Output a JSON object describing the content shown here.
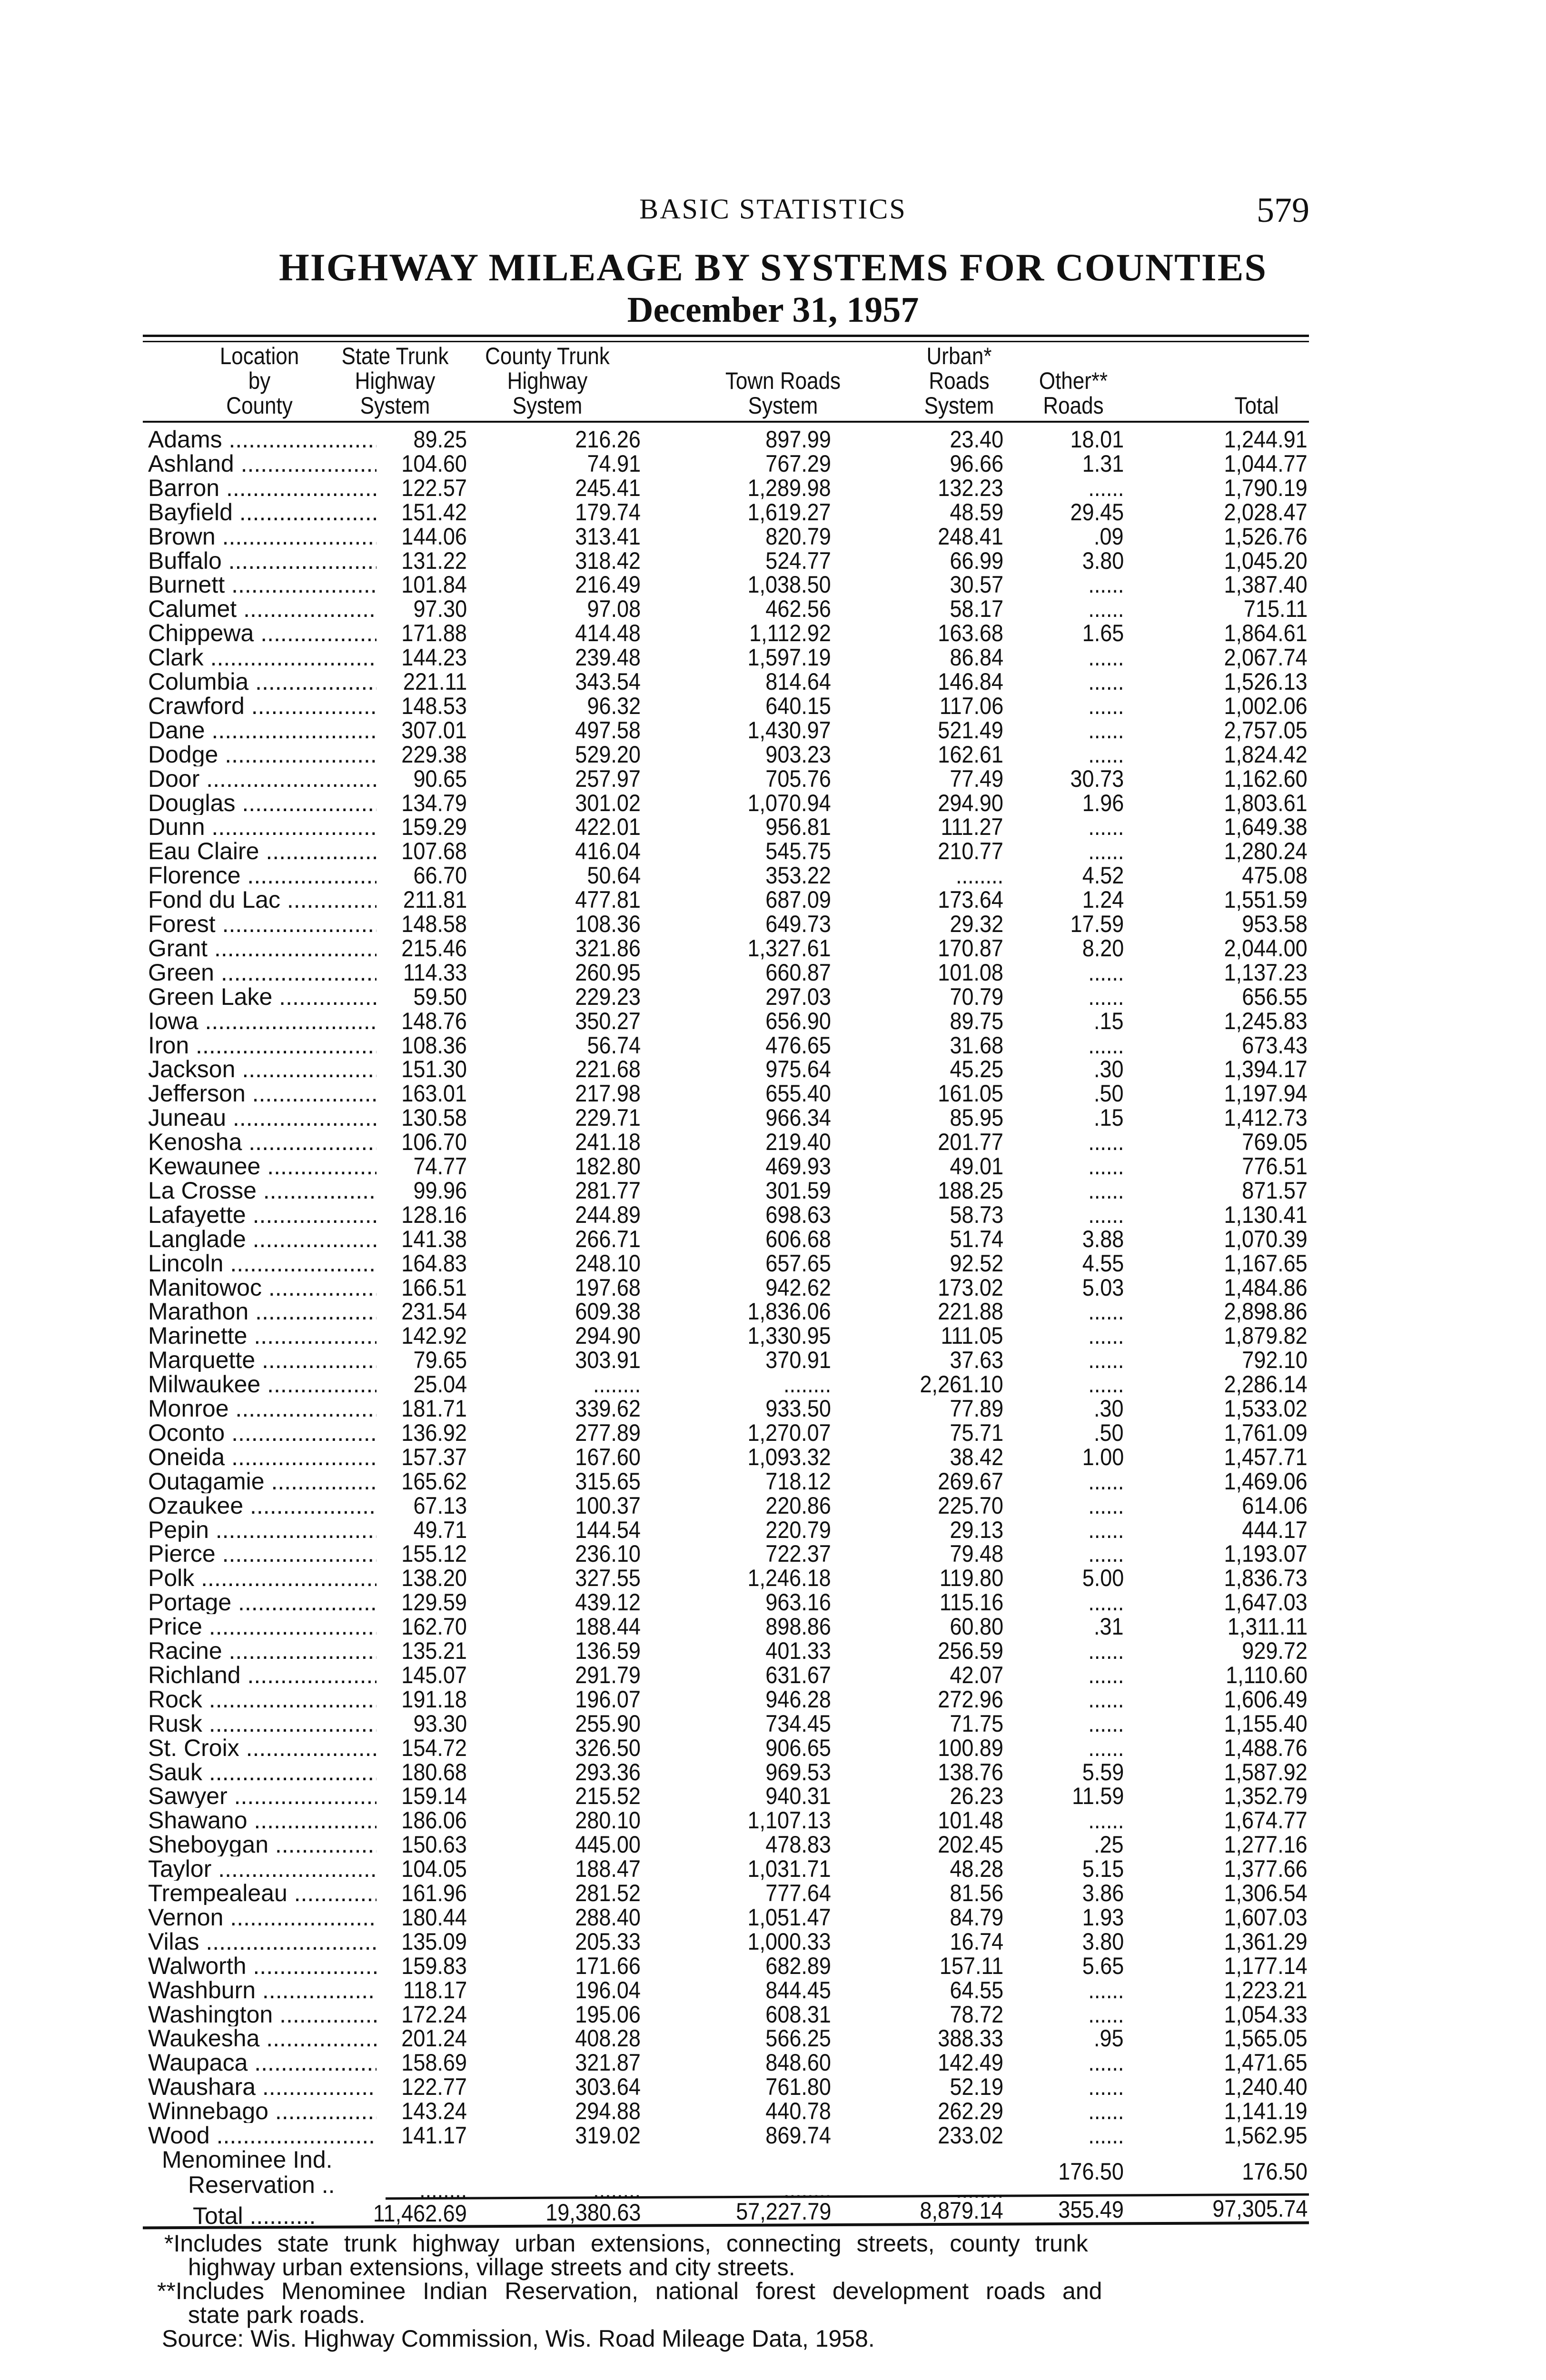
{
  "running_head": "BASIC STATISTICS",
  "page_number": "579",
  "title": "HIGHWAY MILEAGE BY SYSTEMS FOR COUNTIES",
  "date": "December 31, 1957",
  "columns": [
    [
      "Location",
      "by",
      "County"
    ],
    [
      "State Trunk",
      "Highway",
      "System"
    ],
    [
      "County Trunk",
      "Highway",
      "System"
    ],
    [
      "",
      "Town Roads",
      "System"
    ],
    [
      "Urban*",
      "Roads",
      "System"
    ],
    [
      "",
      "Other**",
      "Roads"
    ],
    [
      "",
      "",
      "Total"
    ]
  ],
  "rows": [
    [
      "Adams",
      "89.25",
      "216.26",
      "897.99",
      "23.40",
      "18.01",
      "1,244.91"
    ],
    [
      "Ashland",
      "104.60",
      "74.91",
      "767.29",
      "96.66",
      "1.31",
      "1,044.77"
    ],
    [
      "Barron",
      "122.57",
      "245.41",
      "1,289.98",
      "132.23",
      "......",
      "1,790.19"
    ],
    [
      "Bayfield",
      "151.42",
      "179.74",
      "1,619.27",
      "48.59",
      "29.45",
      "2,028.47"
    ],
    [
      "Brown",
      "144.06",
      "313.41",
      "820.79",
      "248.41",
      ".09",
      "1,526.76"
    ],
    [
      "Buffalo",
      "131.22",
      "318.42",
      "524.77",
      "66.99",
      "3.80",
      "1,045.20"
    ],
    [
      "Burnett",
      "101.84",
      "216.49",
      "1,038.50",
      "30.57",
      "......",
      "1,387.40"
    ],
    [
      "Calumet",
      "97.30",
      "97.08",
      "462.56",
      "58.17",
      "......",
      "715.11"
    ],
    [
      "Chippewa",
      "171.88",
      "414.48",
      "1,112.92",
      "163.68",
      "1.65",
      "1,864.61"
    ],
    [
      "Clark",
      "144.23",
      "239.48",
      "1,597.19",
      "86.84",
      "......",
      "2,067.74"
    ],
    [
      "Columbia",
      "221.11",
      "343.54",
      "814.64",
      "146.84",
      "......",
      "1,526.13"
    ],
    [
      "Crawford",
      "148.53",
      "96.32",
      "640.15",
      "117.06",
      "......",
      "1,002.06"
    ],
    [
      "Dane",
      "307.01",
      "497.58",
      "1,430.97",
      "521.49",
      "......",
      "2,757.05"
    ],
    [
      "Dodge",
      "229.38",
      "529.20",
      "903.23",
      "162.61",
      "......",
      "1,824.42"
    ],
    [
      "Door",
      "90.65",
      "257.97",
      "705.76",
      "77.49",
      "30.73",
      "1,162.60"
    ],
    [
      "Douglas",
      "134.79",
      "301.02",
      "1,070.94",
      "294.90",
      "1.96",
      "1,803.61"
    ],
    [
      "Dunn",
      "159.29",
      "422.01",
      "956.81",
      "111.27",
      "......",
      "1,649.38"
    ],
    [
      "Eau Claire",
      "107.68",
      "416.04",
      "545.75",
      "210.77",
      "......",
      "1,280.24"
    ],
    [
      "Florence",
      "66.70",
      "50.64",
      "353.22",
      "........",
      "4.52",
      "475.08"
    ],
    [
      "Fond du Lac",
      "211.81",
      "477.81",
      "687.09",
      "173.64",
      "1.24",
      "1,551.59"
    ],
    [
      "Forest",
      "148.58",
      "108.36",
      "649.73",
      "29.32",
      "17.59",
      "953.58"
    ],
    [
      "Grant",
      "215.46",
      "321.86",
      "1,327.61",
      "170.87",
      "8.20",
      "2,044.00"
    ],
    [
      "Green",
      "114.33",
      "260.95",
      "660.87",
      "101.08",
      "......",
      "1,137.23"
    ],
    [
      "Green Lake",
      "59.50",
      "229.23",
      "297.03",
      "70.79",
      "......",
      "656.55"
    ],
    [
      "Iowa",
      "148.76",
      "350.27",
      "656.90",
      "89.75",
      ".15",
      "1,245.83"
    ],
    [
      "Iron",
      "108.36",
      "56.74",
      "476.65",
      "31.68",
      "......",
      "673.43"
    ],
    [
      "Jackson",
      "151.30",
      "221.68",
      "975.64",
      "45.25",
      ".30",
      "1,394.17"
    ],
    [
      "Jefferson",
      "163.01",
      "217.98",
      "655.40",
      "161.05",
      ".50",
      "1,197.94"
    ],
    [
      "Juneau",
      "130.58",
      "229.71",
      "966.34",
      "85.95",
      ".15",
      "1,412.73"
    ],
    [
      "Kenosha",
      "106.70",
      "241.18",
      "219.40",
      "201.77",
      "......",
      "769.05"
    ],
    [
      "Kewaunee",
      "74.77",
      "182.80",
      "469.93",
      "49.01",
      "......",
      "776.51"
    ],
    [
      "La Crosse",
      "99.96",
      "281.77",
      "301.59",
      "188.25",
      "......",
      "871.57"
    ],
    [
      "Lafayette",
      "128.16",
      "244.89",
      "698.63",
      "58.73",
      "......",
      "1,130.41"
    ],
    [
      "Langlade",
      "141.38",
      "266.71",
      "606.68",
      "51.74",
      "3.88",
      "1,070.39"
    ],
    [
      "Lincoln",
      "164.83",
      "248.10",
      "657.65",
      "92.52",
      "4.55",
      "1,167.65"
    ],
    [
      "Manitowoc",
      "166.51",
      "197.68",
      "942.62",
      "173.02",
      "5.03",
      "1,484.86"
    ],
    [
      "Marathon",
      "231.54",
      "609.38",
      "1,836.06",
      "221.88",
      "......",
      "2,898.86"
    ],
    [
      "Marinette",
      "142.92",
      "294.90",
      "1,330.95",
      "111.05",
      "......",
      "1,879.82"
    ],
    [
      "Marquette",
      "79.65",
      "303.91",
      "370.91",
      "37.63",
      "......",
      "792.10"
    ],
    [
      "Milwaukee",
      "25.04",
      "........",
      "........",
      "2,261.10",
      "......",
      "2,286.14"
    ],
    [
      "Monroe",
      "181.71",
      "339.62",
      "933.50",
      "77.89",
      ".30",
      "1,533.02"
    ],
    [
      "Oconto",
      "136.92",
      "277.89",
      "1,270.07",
      "75.71",
      ".50",
      "1,761.09"
    ],
    [
      "Oneida",
      "157.37",
      "167.60",
      "1,093.32",
      "38.42",
      "1.00",
      "1,457.71"
    ],
    [
      "Outagamie",
      "165.62",
      "315.65",
      "718.12",
      "269.67",
      "......",
      "1,469.06"
    ],
    [
      "Ozaukee",
      "67.13",
      "100.37",
      "220.86",
      "225.70",
      "......",
      "614.06"
    ],
    [
      "Pepin",
      "49.71",
      "144.54",
      "220.79",
      "29.13",
      "......",
      "444.17"
    ],
    [
      "Pierce",
      "155.12",
      "236.10",
      "722.37",
      "79.48",
      "......",
      "1,193.07"
    ],
    [
      "Polk",
      "138.20",
      "327.55",
      "1,246.18",
      "119.80",
      "5.00",
      "1,836.73"
    ],
    [
      "Portage",
      "129.59",
      "439.12",
      "963.16",
      "115.16",
      "......",
      "1,647.03"
    ],
    [
      "Price",
      "162.70",
      "188.44",
      "898.86",
      "60.80",
      ".31",
      "1,311.11"
    ],
    [
      "Racine",
      "135.21",
      "136.59",
      "401.33",
      "256.59",
      "......",
      "929.72"
    ],
    [
      "Richland",
      "145.07",
      "291.79",
      "631.67",
      "42.07",
      "......",
      "1,110.60"
    ],
    [
      "Rock",
      "191.18",
      "196.07",
      "946.28",
      "272.96",
      "......",
      "1,606.49"
    ],
    [
      "Rusk",
      "93.30",
      "255.90",
      "734.45",
      "71.75",
      "......",
      "1,155.40"
    ],
    [
      "St. Croix",
      "154.72",
      "326.50",
      "906.65",
      "100.89",
      "......",
      "1,488.76"
    ],
    [
      "Sauk",
      "180.68",
      "293.36",
      "969.53",
      "138.76",
      "5.59",
      "1,587.92"
    ],
    [
      "Sawyer",
      "159.14",
      "215.52",
      "940.31",
      "26.23",
      "11.59",
      "1,352.79"
    ],
    [
      "Shawano",
      "186.06",
      "280.10",
      "1,107.13",
      "101.48",
      "......",
      "1,674.77"
    ],
    [
      "Sheboygan",
      "150.63",
      "445.00",
      "478.83",
      "202.45",
      ".25",
      "1,277.16"
    ],
    [
      "Taylor",
      "104.05",
      "188.47",
      "1,031.71",
      "48.28",
      "5.15",
      "1,377.66"
    ],
    [
      "Trempealeau",
      "161.96",
      "281.52",
      "777.64",
      "81.56",
      "3.86",
      "1,306.54"
    ],
    [
      "Vernon",
      "180.44",
      "288.40",
      "1,051.47",
      "84.79",
      "1.93",
      "1,607.03"
    ],
    [
      "Vilas",
      "135.09",
      "205.33",
      "1,000.33",
      "16.74",
      "3.80",
      "1,361.29"
    ],
    [
      "Walworth",
      "159.83",
      "171.66",
      "682.89",
      "157.11",
      "5.65",
      "1,177.14"
    ],
    [
      "Washburn",
      "118.17",
      "196.04",
      "844.45",
      "64.55",
      "......",
      "1,223.21"
    ],
    [
      "Washington",
      "172.24",
      "195.06",
      "608.31",
      "78.72",
      "......",
      "1,054.33"
    ],
    [
      "Waukesha",
      "201.24",
      "408.28",
      "566.25",
      "388.33",
      ".95",
      "1,565.05"
    ],
    [
      "Waupaca",
      "158.69",
      "321.87",
      "848.60",
      "142.49",
      "......",
      "1,471.65"
    ],
    [
      "Waushara",
      "122.77",
      "303.64",
      "761.80",
      "52.19",
      "......",
      "1,240.40"
    ],
    [
      "Winnebago",
      "143.24",
      "294.88",
      "440.78",
      "262.29",
      "......",
      "1,141.19"
    ],
    [
      "Wood",
      "141.17",
      "319.02",
      "869.74",
      "233.02",
      "......",
      "1,562.95"
    ]
  ],
  "menominee": {
    "name_line1": "Menominee Ind.",
    "name_line2": "Reservation ..",
    "values": [
      "........",
      "........",
      "........",
      "........",
      "176.50",
      "176.50"
    ]
  },
  "total": {
    "label": "Total ..........",
    "values": [
      "11,462.69",
      "19,380.63",
      "57,227.79",
      "8,879.14",
      "355.49",
      "97,305.74"
    ]
  },
  "footnotes": [
    "*Includes state trunk highway urban extensions, connecting streets, county trunk",
    "highway urban extensions, village streets and city streets.",
    "**Includes Menominee Indian Reservation, national forest development roads and",
    "state park roads.",
    "Source: Wis. Highway Commission, Wis. Road Mileage Data, 1958."
  ]
}
